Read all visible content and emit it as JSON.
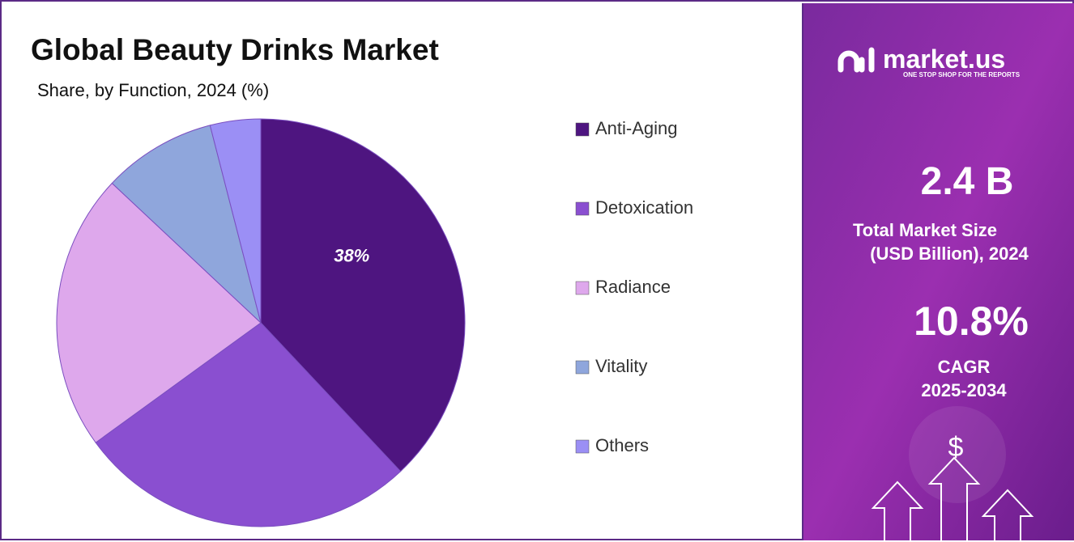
{
  "chart_data": {
    "type": "pie",
    "title": "Global Beauty Drinks Market",
    "subtitle": "Share, by Function, 2024 (%)",
    "categories": [
      "Anti-Aging",
      "Detoxication",
      "Radiance",
      "Vitality",
      "Others"
    ],
    "values": [
      38,
      27,
      22,
      9,
      4
    ],
    "value_labels": [
      "38%",
      null,
      null,
      null,
      null
    ],
    "colors": [
      "#4e1580",
      "#8a4fd0",
      "#dea8ec",
      "#8fa6dc",
      "#9b8ff5"
    ]
  },
  "panel": {
    "brand": "market.us",
    "tagline": "ONE STOP SHOP FOR THE REPORTS",
    "market_size": "2.4  B",
    "market_size_label": [
      "Total Market Size",
      "(USD Billion), 2024"
    ],
    "cagr": "10.8%",
    "cagr_label": [
      "CAGR",
      "2025-2034"
    ],
    "currency_icon": "$"
  }
}
